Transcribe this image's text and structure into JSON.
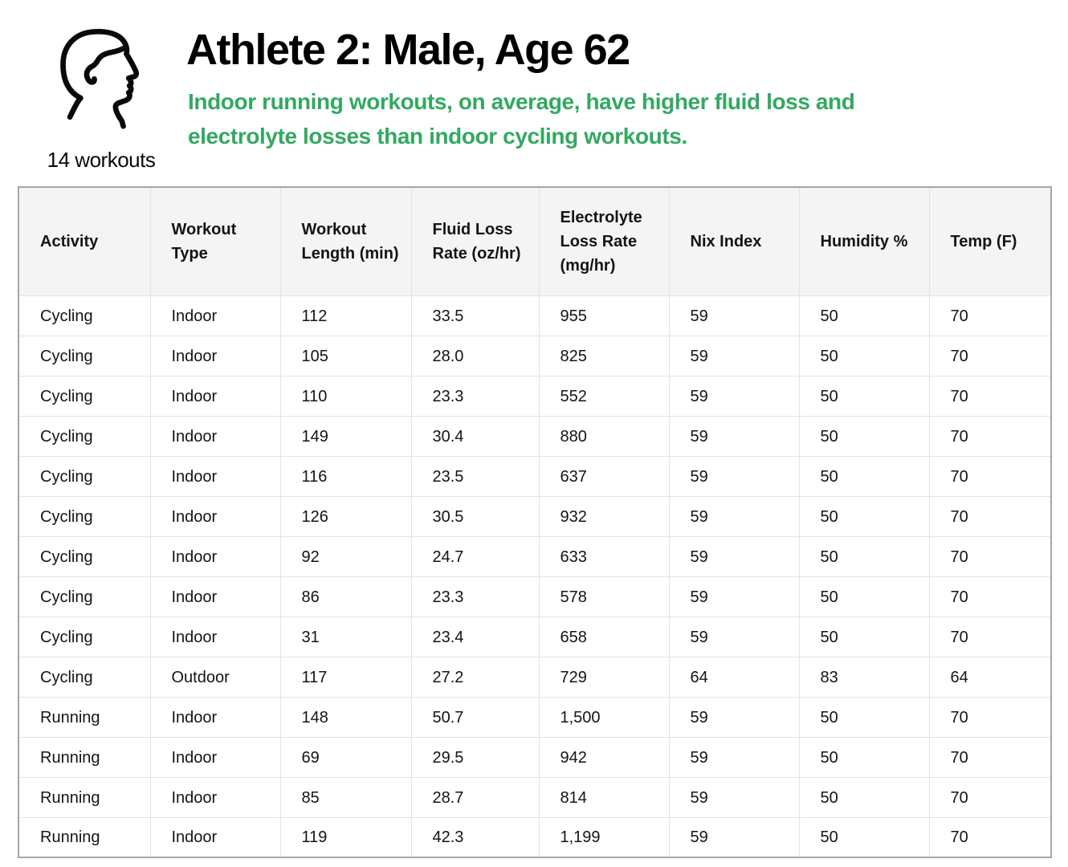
{
  "header": {
    "title": "Athlete 2: Male, Age 62",
    "subtitle_lines": [
      "Indoor running workouts, on average, have higher fluid loss and",
      "electrolyte losses than indoor cycling workouts."
    ],
    "workouts_label": "14 workouts",
    "icon": "male-head-profile-icon"
  },
  "colors": {
    "accent_green": "#33a961",
    "table_header_bg": "#f4f4f4",
    "table_outer_border": "#a6a6a6",
    "table_inner_border": "#e3e3e3",
    "text": "#000000"
  },
  "chart_data": {
    "type": "table",
    "title": "Athlete 2: Male, Age 62",
    "columns": [
      "Activity",
      "Workout Type",
      "Workout Length (min)",
      "Fluid Loss Rate (oz/hr)",
      "Electrolyte Loss Rate (mg/hr)",
      "Nix Index",
      "Humidity %",
      "Temp (F)"
    ],
    "rows": [
      [
        "Cycling",
        "Indoor",
        "112",
        "33.5",
        "955",
        "59",
        "50",
        "70"
      ],
      [
        "Cycling",
        "Indoor",
        "105",
        "28.0",
        "825",
        "59",
        "50",
        "70"
      ],
      [
        "Cycling",
        "Indoor",
        "110",
        "23.3",
        "552",
        "59",
        "50",
        "70"
      ],
      [
        "Cycling",
        "Indoor",
        "149",
        "30.4",
        "880",
        "59",
        "50",
        "70"
      ],
      [
        "Cycling",
        "Indoor",
        "116",
        "23.5",
        "637",
        "59",
        "50",
        "70"
      ],
      [
        "Cycling",
        "Indoor",
        "126",
        "30.5",
        "932",
        "59",
        "50",
        "70"
      ],
      [
        "Cycling",
        "Indoor",
        "92",
        "24.7",
        "633",
        "59",
        "50",
        "70"
      ],
      [
        "Cycling",
        "Indoor",
        "86",
        "23.3",
        "578",
        "59",
        "50",
        "70"
      ],
      [
        "Cycling",
        "Indoor",
        "31",
        "23.4",
        "658",
        "59",
        "50",
        "70"
      ],
      [
        "Cycling",
        "Outdoor",
        "117",
        "27.2",
        "729",
        "64",
        "83",
        "64"
      ],
      [
        "Running",
        "Indoor",
        "148",
        "50.7",
        "1,500",
        "59",
        "50",
        "70"
      ],
      [
        "Running",
        "Indoor",
        "69",
        "29.5",
        "942",
        "59",
        "50",
        "70"
      ],
      [
        "Running",
        "Indoor",
        "85",
        "28.7",
        "814",
        "59",
        "50",
        "70"
      ],
      [
        "Running",
        "Indoor",
        "119",
        "42.3",
        "1,199",
        "59",
        "50",
        "70"
      ]
    ]
  }
}
